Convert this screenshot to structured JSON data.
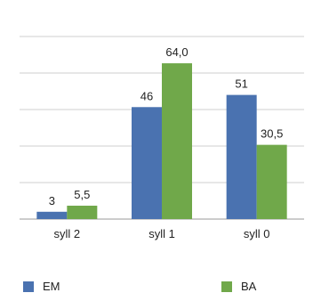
{
  "chart_data": {
    "type": "bar",
    "title": "",
    "categories": [
      "syll 2",
      "syll 1",
      "syll 0"
    ],
    "series": [
      {
        "name": "EM",
        "values": [
          3,
          46,
          51
        ],
        "labels": [
          "3",
          "46",
          "51"
        ],
        "color": "#4a72b0"
      },
      {
        "name": "BA",
        "values": [
          5.5,
          64.0,
          30.5
        ],
        "labels": [
          "5,5",
          "64,0",
          "30,5"
        ],
        "color": "#70a84a"
      }
    ],
    "ylim": [
      0,
      75
    ],
    "yticks": [
      0,
      15,
      30,
      45,
      60,
      75
    ],
    "grid": true,
    "legend": "bottom"
  }
}
